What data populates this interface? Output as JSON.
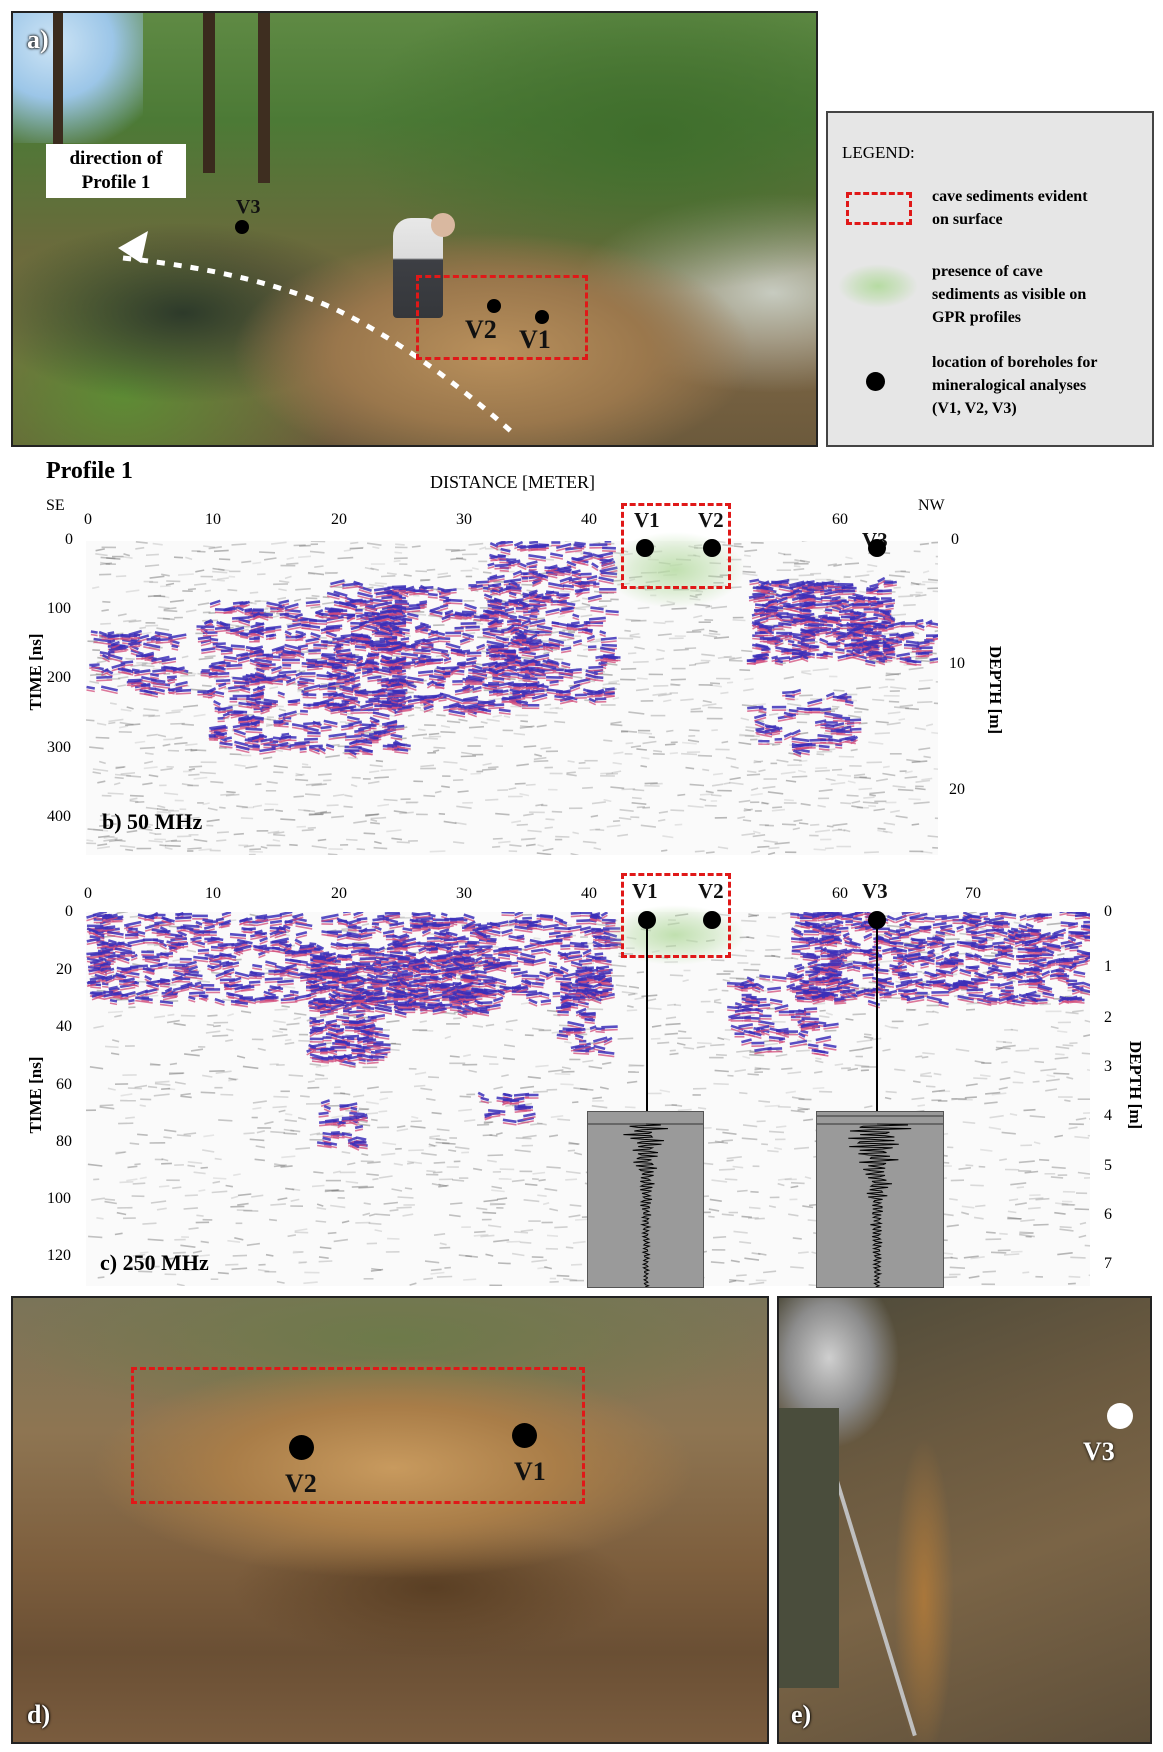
{
  "panel_a": {
    "label": "a)",
    "direction_label_line1": "direction of",
    "direction_label_line2": "Profile 1",
    "v3": "V3",
    "v2": "V2",
    "v1": "V1"
  },
  "legend": {
    "title": "LEGEND:",
    "item1_line1": "cave sediments evident",
    "item1_line2": "on surface",
    "item2_line1": "presence of cave",
    "item2_line2": "sediments as visible on",
    "item2_line3": "GPR profiles",
    "item3_line1": "location of boreholes for",
    "item3_line2": "mineralogical analyses",
    "item3_line3": "(V1, V2, V3)",
    "colors": {
      "sediment_box": "#e01818",
      "sediment_gpr": "#b6dba2",
      "borehole": "#000000"
    }
  },
  "profile": {
    "title": "Profile 1",
    "distance_label": "DISTANCE [METER]",
    "se": "SE",
    "nw": "NW",
    "time_label": "TIME [ns]",
    "depth_label": "DEPTH [m]"
  },
  "panel_b": {
    "label": "b) 50 MHz",
    "x_ticks": [
      "0",
      "10",
      "20",
      "30",
      "40",
      "60"
    ],
    "time_ticks": [
      "0",
      "100",
      "200",
      "300",
      "400"
    ],
    "depth_ticks": [
      "0",
      "10",
      "20"
    ],
    "v1": "V1",
    "v2": "V2",
    "v3": "V3"
  },
  "panel_c": {
    "label": "c) 250 MHz",
    "x_ticks": [
      "0",
      "10",
      "20",
      "30",
      "40",
      "60",
      "70"
    ],
    "time_ticks": [
      "0",
      "20",
      "40",
      "60",
      "80",
      "100",
      "120"
    ],
    "depth_ticks": [
      "0",
      "1",
      "2",
      "3",
      "4",
      "5",
      "6",
      "7"
    ],
    "v1": "V1",
    "v2": "V2",
    "v3": "V3"
  },
  "panel_d": {
    "label": "d)",
    "v2": "V2",
    "v1": "V1"
  },
  "panel_e": {
    "label": "e)",
    "v3": "V3"
  }
}
